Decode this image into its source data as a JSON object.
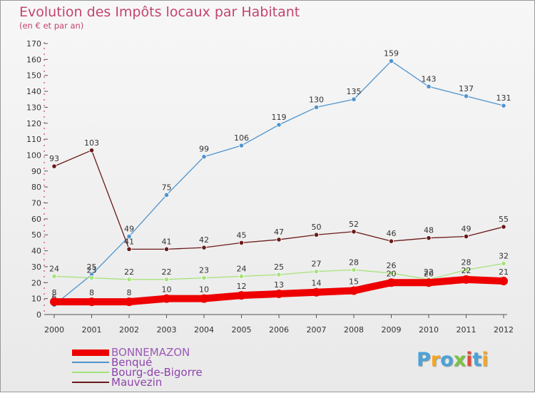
{
  "title": "Evolution des Impôts locaux par Habitant",
  "subtitle": "(en € et par an)",
  "logo": {
    "text": "Proxiti",
    "colors": [
      "#4aa3d8",
      "#f5a623",
      "#4aa3d8",
      "#7cc242",
      "#e04a3b",
      "#4aa3d8",
      "#f5a623"
    ]
  },
  "chart_data": {
    "type": "line",
    "title": "Evolution des Impôts locaux par Habitant",
    "subtitle": "(en € et par an)",
    "x": [
      "2000",
      "2001",
      "2002",
      "2003",
      "2004",
      "2005",
      "2006",
      "2007",
      "2008",
      "2009",
      "2010",
      "2011",
      "2012"
    ],
    "ylim": [
      0,
      170
    ],
    "yticks": [
      0,
      10,
      20,
      30,
      40,
      50,
      60,
      70,
      80,
      90,
      100,
      110,
      120,
      130,
      140,
      150,
      160,
      170
    ],
    "grid": false,
    "legend_position": "bottom-left",
    "series": [
      {
        "name": "BONNEMAZON",
        "color": "#ee0000",
        "values": [
          8,
          8,
          8,
          10,
          10,
          12,
          13,
          14,
          15,
          20,
          20,
          22,
          21
        ]
      },
      {
        "name": "Benqué",
        "color": "#4f94cd",
        "values": [
          6,
          25,
          49,
          75,
          99,
          106,
          119,
          130,
          135,
          159,
          143,
          137,
          131
        ]
      },
      {
        "name": "Bourg-de-Bigorre",
        "color": "#a6e27a",
        "values": [
          24,
          23,
          22,
          22,
          23,
          24,
          25,
          27,
          28,
          26,
          22,
          28,
          32
        ]
      },
      {
        "name": "Mauvezin",
        "color": "#6b1a1a",
        "values": [
          93,
          103,
          41,
          41,
          42,
          45,
          47,
          50,
          52,
          46,
          48,
          49,
          55
        ]
      }
    ]
  }
}
